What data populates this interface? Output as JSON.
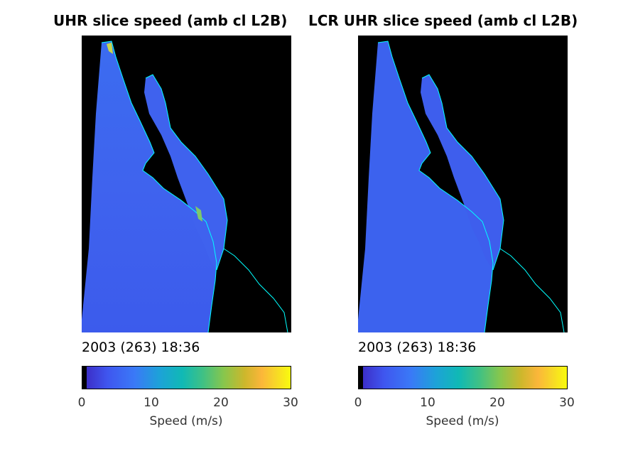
{
  "panels": [
    {
      "title": "UHR slice speed (amb cl L2B)",
      "timestamp": "2003 (263) 18:36"
    },
    {
      "title": "LCR UHR slice speed (amb cl L2B)",
      "timestamp": "2003 (263) 18:36"
    }
  ],
  "colorbar": {
    "label": "Speed (m/s)",
    "ticks": [
      "0",
      "10",
      "20",
      "30"
    ],
    "min": 0,
    "max": 30,
    "colormap": "parula",
    "colors": {
      "low": "#3e26a8",
      "mid": "#12b2ba",
      "high": "#f9fb0e",
      "land": "#000000",
      "coast": "#00ffff"
    }
  }
}
